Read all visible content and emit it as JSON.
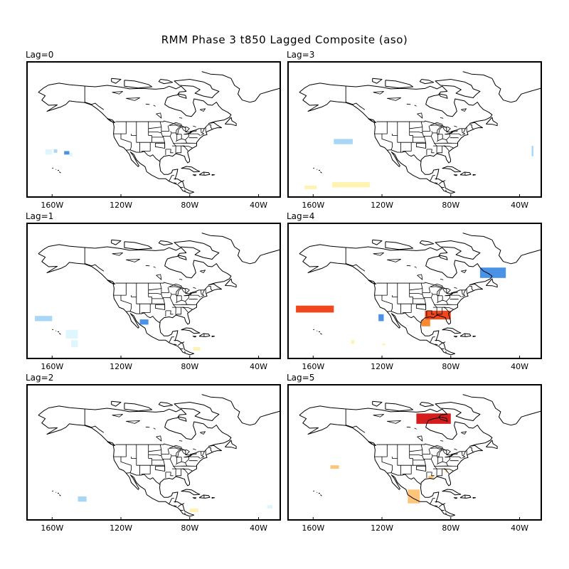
{
  "title": "RMM Phase 3 t850 Lagged Composite (aso)",
  "longitude_ticks": [
    "160W",
    "120W",
    "80W",
    "40W"
  ],
  "colors": {
    "light_blue": "#dff6ff",
    "mid_blue": "#a8d6f7",
    "blue": "#4a92e6",
    "light_yellow": "#fff3b0",
    "light_orange": "#fcc57a",
    "orange": "#fb8a2f",
    "red_orange": "#f0471d",
    "red": "#d51d1d",
    "line": "#000000"
  },
  "panels": [
    {
      "label": "Lag=0",
      "anomalies": [
        {
          "lon": [
            -164,
            -160
          ],
          "lat": [
            30,
            33
          ],
          "color": "light_blue"
        },
        {
          "lon": [
            -159,
            -157
          ],
          "lat": [
            31,
            33
          ],
          "color": "mid_blue"
        },
        {
          "lon": [
            -153,
            -150
          ],
          "lat": [
            30,
            32
          ],
          "color": "blue"
        },
        {
          "lon": [
            -150,
            -148
          ],
          "lat": [
            29,
            31
          ],
          "color": "light_blue"
        }
      ]
    },
    {
      "label": "Lag=3",
      "anomalies": [
        {
          "lon": [
            -148,
            -137
          ],
          "lat": [
            36,
            39
          ],
          "color": "mid_blue"
        },
        {
          "lon": [
            -165,
            -158
          ],
          "lat": [
            10,
            12
          ],
          "color": "light_yellow"
        },
        {
          "lon": [
            -149,
            -127
          ],
          "lat": [
            11,
            14
          ],
          "color": "light_yellow"
        },
        {
          "lon": [
            -33,
            -32
          ],
          "lat": [
            29,
            35
          ],
          "color": "mid_blue"
        }
      ]
    },
    {
      "label": "Lag=1",
      "anomalies": [
        {
          "lon": [
            -170,
            -160
          ],
          "lat": [
            27,
            30
          ],
          "color": "mid_blue"
        },
        {
          "lon": [
            -152,
            -145
          ],
          "lat": [
            17,
            22
          ],
          "color": "light_blue"
        },
        {
          "lon": [
            -149,
            -145
          ],
          "lat": [
            12,
            16
          ],
          "color": "light_blue"
        },
        {
          "lon": [
            -109,
            -104
          ],
          "lat": [
            25,
            28
          ],
          "color": "blue"
        },
        {
          "lon": [
            -78,
            -74
          ],
          "lat": [
            10,
            12
          ],
          "color": "light_yellow"
        }
      ]
    },
    {
      "label": "Lag=4",
      "anomalies": [
        {
          "lon": [
            -170,
            -148
          ],
          "lat": [
            32,
            36
          ],
          "color": "red_orange"
        },
        {
          "lon": [
            -63,
            -48
          ],
          "lat": [
            52,
            58
          ],
          "color": "blue"
        },
        {
          "lon": [
            -122,
            -119
          ],
          "lat": [
            27,
            31
          ],
          "color": "blue"
        },
        {
          "lon": [
            -95,
            -80
          ],
          "lat": [
            28,
            33
          ],
          "color": "red_orange"
        },
        {
          "lon": [
            -97,
            -92
          ],
          "lat": [
            24,
            28
          ],
          "color": "orange"
        },
        {
          "lon": [
            -138,
            -136
          ],
          "lat": [
            14,
            16
          ],
          "color": "light_yellow"
        },
        {
          "lon": [
            -120,
            -118
          ],
          "lat": [
            13,
            14
          ],
          "color": "light_yellow"
        }
      ]
    },
    {
      "label": "Lag=2",
      "anomalies": [
        {
          "lon": [
            -145,
            -140
          ],
          "lat": [
            16,
            19
          ],
          "color": "mid_blue"
        },
        {
          "lon": [
            -80,
            -75
          ],
          "lat": [
            10,
            12
          ],
          "color": "light_yellow"
        },
        {
          "lon": [
            -35,
            -32
          ],
          "lat": [
            12,
            14
          ],
          "color": "light_blue"
        }
      ]
    },
    {
      "label": "Lag=5",
      "anomalies": [
        {
          "lon": [
            -100,
            -80
          ],
          "lat": [
            61,
            67
          ],
          "color": "red"
        },
        {
          "lon": [
            -150,
            -145
          ],
          "lat": [
            35,
            37
          ],
          "color": "light_orange"
        },
        {
          "lon": [
            -105,
            -98
          ],
          "lat": [
            15,
            23
          ],
          "color": "light_orange"
        },
        {
          "lon": [
            -93,
            -90
          ],
          "lat": [
            29,
            31
          ],
          "color": "light_orange"
        },
        {
          "lon": [
            -83,
            -82
          ],
          "lat": [
            33,
            35
          ],
          "color": "light_orange"
        }
      ]
    }
  ]
}
